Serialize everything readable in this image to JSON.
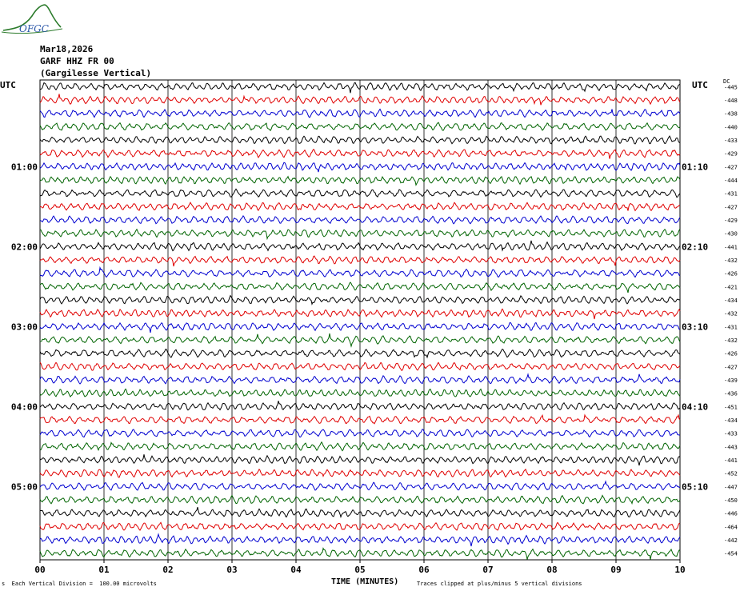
{
  "logo": {
    "text": "OFGC",
    "color": "#2a7a2a"
  },
  "header": {
    "date": "Mar18,2026",
    "station": "GARF HHZ FR 00",
    "station_name": "(Gargilesse Vertical)",
    "utc_left": "UTC",
    "utc_right": "UTC",
    "dc_label": "DC"
  },
  "footer": {
    "mark": "s",
    "scale": "Each Vertical Division =  100.00 microvolts",
    "xlabel": "TIME (MINUTES)",
    "clip": "Traces clipped at plus/minus 5 vertical divisions"
  },
  "chart_data": {
    "type": "line",
    "title": "GARF HHZ FR 00 (Gargilesse Vertical) Mar18,2026",
    "xlabel": "TIME (MINUTES)",
    "xlim": [
      0,
      10
    ],
    "x_ticks": [
      "00",
      "01",
      "02",
      "03",
      "04",
      "05",
      "06",
      "07",
      "08",
      "09",
      "10"
    ],
    "y_hour_labels_left": [
      {
        "label": "01:00",
        "row": 6
      },
      {
        "label": "02:00",
        "row": 12
      },
      {
        "label": "03:00",
        "row": 18
      },
      {
        "label": "04:00",
        "row": 24
      },
      {
        "label": "05:00",
        "row": 30
      }
    ],
    "y_hour_labels_right": [
      {
        "label": "01:10",
        "row": 6
      },
      {
        "label": "02:10",
        "row": 12
      },
      {
        "label": "03:10",
        "row": 18
      },
      {
        "label": "04:10",
        "row": 24
      },
      {
        "label": "05:10",
        "row": 30
      }
    ],
    "trace_colors": [
      "#000000",
      "#e00000",
      "#0000d0",
      "#006400"
    ],
    "dc_offsets": [
      -445,
      -448,
      -438,
      -440,
      -433,
      -429,
      -427,
      -444,
      -431,
      -427,
      -429,
      -430,
      -441,
      -432,
      -426,
      -421,
      -434,
      -432,
      -431,
      -432,
      -426,
      -427,
      -439,
      -436,
      -451,
      -434,
      -433,
      -443,
      -441,
      -452,
      -447,
      -450,
      -446,
      -464,
      -442,
      -454
    ],
    "grid": true
  }
}
